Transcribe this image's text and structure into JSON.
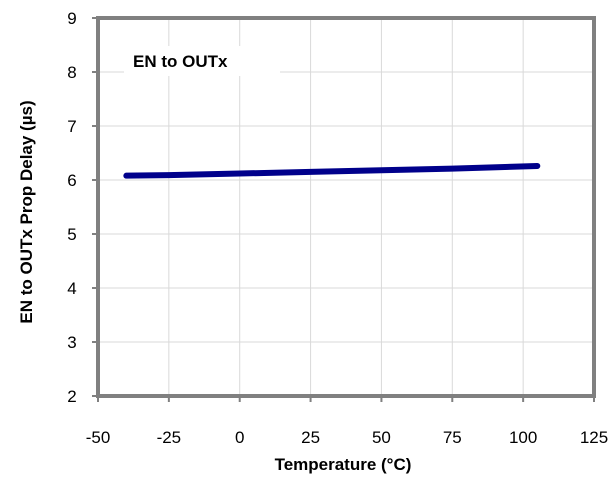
{
  "chart_data": {
    "type": "line",
    "title": "",
    "annotation": "EN to OUTx",
    "xlabel": "Temperature  (°C)",
    "ylabel": "EN to OUTx Prop Delay  (µs)",
    "xlim": [
      -50,
      125
    ],
    "ylim": [
      2,
      9
    ],
    "x_ticks": [
      "-50",
      "-25",
      "0",
      "25",
      "50",
      "75",
      "100",
      "125"
    ],
    "y_ticks": [
      "2",
      "3",
      "4",
      "5",
      "6",
      "7",
      "8",
      "9"
    ],
    "grid": true,
    "legend": "none",
    "series": [
      {
        "color": "#00008B",
        "x": [
          -40,
          -25,
          0,
          25,
          50,
          75,
          105
        ],
        "y": [
          6.08,
          6.09,
          6.12,
          6.15,
          6.18,
          6.21,
          6.26
        ]
      }
    ]
  }
}
